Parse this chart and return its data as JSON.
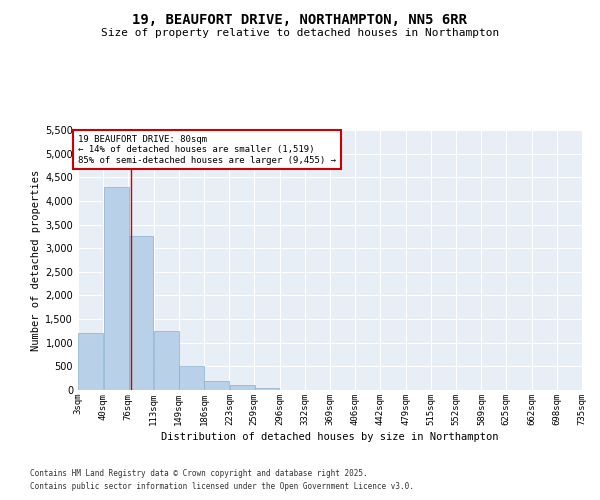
{
  "title": "19, BEAUFORT DRIVE, NORTHAMPTON, NN5 6RR",
  "subtitle": "Size of property relative to detached houses in Northampton",
  "xlabel": "Distribution of detached houses by size in Northampton",
  "ylabel": "Number of detached properties",
  "bar_color": "#b8d0e8",
  "bar_edge_color": "#88b0d0",
  "bg_color": "#e8eef5",
  "grid_color": "#ffffff",
  "annotation_text": "19 BEAUFORT DRIVE: 80sqm\n← 14% of detached houses are smaller (1,519)\n85% of semi-detached houses are larger (9,455) →",
  "vline_x": 80,
  "vline_color": "#cc0000",
  "annotation_box_color": "#cc0000",
  "categories": [
    "3sqm",
    "40sqm",
    "76sqm",
    "113sqm",
    "149sqm",
    "186sqm",
    "223sqm",
    "259sqm",
    "296sqm",
    "332sqm",
    "369sqm",
    "406sqm",
    "442sqm",
    "479sqm",
    "515sqm",
    "552sqm",
    "589sqm",
    "625sqm",
    "662sqm",
    "698sqm",
    "735sqm"
  ],
  "bin_edges": [
    3,
    40,
    76,
    113,
    149,
    186,
    223,
    259,
    296,
    332,
    369,
    406,
    442,
    479,
    515,
    552,
    589,
    625,
    662,
    698,
    735
  ],
  "values": [
    1200,
    4300,
    3250,
    1250,
    500,
    200,
    100,
    50,
    0,
    0,
    0,
    0,
    0,
    0,
    0,
    0,
    0,
    0,
    0,
    0
  ],
  "ylim": [
    0,
    5500
  ],
  "yticks": [
    0,
    500,
    1000,
    1500,
    2000,
    2500,
    3000,
    3500,
    4000,
    4500,
    5000,
    5500
  ],
  "footnote1": "Contains HM Land Registry data © Crown copyright and database right 2025.",
  "footnote2": "Contains public sector information licensed under the Open Government Licence v3.0."
}
